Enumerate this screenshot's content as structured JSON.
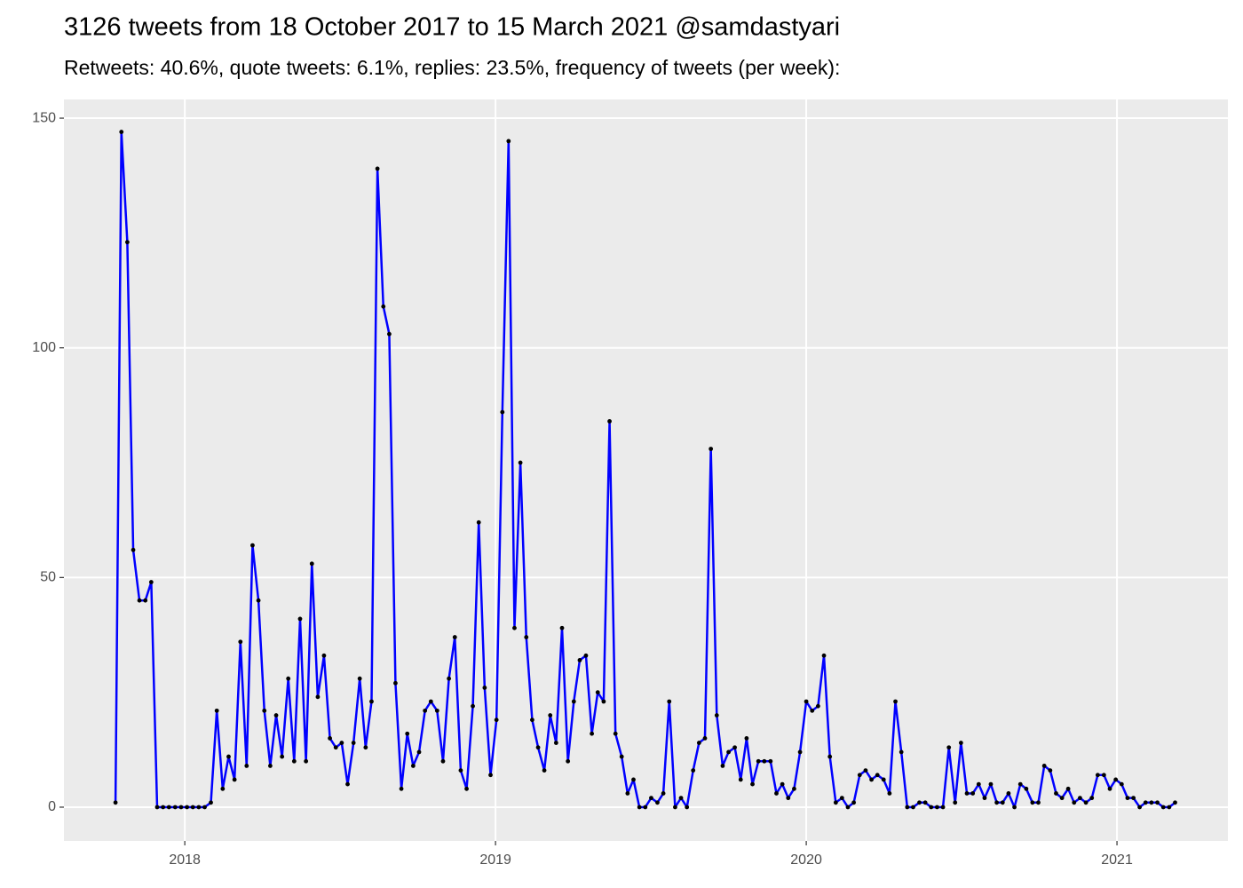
{
  "chart_data": {
    "type": "line",
    "title": "3126 tweets from 18 October 2017 to 15 March 2021 @samdastyari",
    "subtitle": "Retweets: 40.6%, quote tweets: 6.1%, replies: 23.5%, frequency of tweets (per week):",
    "x": [
      2017.777,
      2017.796,
      2017.815,
      2017.834,
      2017.854,
      2017.873,
      2017.892,
      2017.911,
      2017.93,
      2017.949,
      2017.969,
      2017.988,
      2018.007,
      2018.026,
      2018.045,
      2018.064,
      2018.084,
      2018.103,
      2018.122,
      2018.141,
      2018.16,
      2018.179,
      2018.199,
      2018.218,
      2018.237,
      2018.256,
      2018.275,
      2018.294,
      2018.313,
      2018.333,
      2018.352,
      2018.371,
      2018.39,
      2018.409,
      2018.428,
      2018.448,
      2018.467,
      2018.486,
      2018.505,
      2018.524,
      2018.543,
      2018.563,
      2018.582,
      2018.601,
      2018.62,
      2018.639,
      2018.658,
      2018.678,
      2018.697,
      2018.716,
      2018.735,
      2018.754,
      2018.773,
      2018.792,
      2018.812,
      2018.831,
      2018.85,
      2018.869,
      2018.888,
      2018.907,
      2018.927,
      2018.946,
      2018.965,
      2018.984,
      2019.003,
      2019.022,
      2019.042,
      2019.061,
      2019.08,
      2019.099,
      2019.118,
      2019.137,
      2019.157,
      2019.176,
      2019.195,
      2019.214,
      2019.233,
      2019.252,
      2019.271,
      2019.291,
      2019.31,
      2019.329,
      2019.348,
      2019.367,
      2019.386,
      2019.406,
      2019.425,
      2019.444,
      2019.463,
      2019.482,
      2019.501,
      2019.521,
      2019.54,
      2019.559,
      2019.578,
      2019.597,
      2019.616,
      2019.636,
      2019.655,
      2019.674,
      2019.693,
      2019.712,
      2019.731,
      2019.75,
      2019.77,
      2019.789,
      2019.808,
      2019.827,
      2019.846,
      2019.865,
      2019.885,
      2019.904,
      2019.923,
      2019.942,
      2019.961,
      2019.98,
      2020.0,
      2020.019,
      2020.038,
      2020.057,
      2020.076,
      2020.095,
      2020.115,
      2020.134,
      2020.153,
      2020.172,
      2020.191,
      2020.21,
      2020.229,
      2020.249,
      2020.268,
      2020.287,
      2020.306,
      2020.325,
      2020.344,
      2020.364,
      2020.383,
      2020.402,
      2020.421,
      2020.44,
      2020.459,
      2020.479,
      2020.498,
      2020.517,
      2020.536,
      2020.555,
      2020.574,
      2020.594,
      2020.613,
      2020.632,
      2020.651,
      2020.67,
      2020.689,
      2020.708,
      2020.728,
      2020.747,
      2020.766,
      2020.785,
      2020.804,
      2020.823,
      2020.843,
      2020.862,
      2020.881,
      2020.9,
      2020.919,
      2020.938,
      2020.958,
      2020.977,
      2020.996,
      2021.015,
      2021.034,
      2021.053,
      2021.073,
      2021.092,
      2021.111,
      2021.13,
      2021.149,
      2021.168,
      2021.187
    ],
    "values": [
      1,
      147,
      123,
      56,
      45,
      45,
      49,
      0,
      0,
      0,
      0,
      0,
      0,
      0,
      0,
      0,
      1,
      21,
      4,
      11,
      6,
      36,
      9,
      57,
      45,
      21,
      9,
      20,
      11,
      28,
      10,
      41,
      10,
      53,
      24,
      33,
      15,
      13,
      14,
      5,
      14,
      28,
      13,
      23,
      139,
      109,
      103,
      27,
      4,
      16,
      9,
      12,
      21,
      23,
      21,
      10,
      28,
      37,
      8,
      4,
      22,
      62,
      26,
      7,
      19,
      86,
      145,
      39,
      75,
      37,
      19,
      13,
      8,
      20,
      14,
      39,
      10,
      23,
      32,
      33,
      16,
      25,
      23,
      84,
      16,
      11,
      3,
      6,
      0,
      0,
      2,
      1,
      3,
      23,
      0,
      2,
      0,
      8,
      14,
      15,
      78,
      20,
      9,
      12,
      13,
      6,
      15,
      5,
      10,
      10,
      10,
      3,
      5,
      2,
      4,
      12,
      23,
      21,
      22,
      33,
      11,
      1,
      2,
      0,
      1,
      7,
      8,
      6,
      7,
      6,
      3,
      23,
      12,
      0,
      0,
      1,
      1,
      0,
      0,
      0,
      13,
      1,
      14,
      3,
      3,
      5,
      2,
      5,
      1,
      1,
      3,
      0,
      5,
      4,
      1,
      1,
      9,
      8,
      3,
      2,
      4,
      1,
      2,
      1,
      2,
      7,
      7,
      4,
      6,
      5,
      2,
      2,
      0,
      1,
      1,
      1,
      0,
      0,
      1
    ],
    "color": "#0000ff",
    "point_color": "#000000",
    "xlim": [
      2017.611,
      2021.357
    ],
    "xticks": [
      2018,
      2019,
      2020,
      2021
    ],
    "ylim": [
      -7.35,
      154.07
    ],
    "yticks": [
      0,
      50,
      100,
      150
    ],
    "grid": true
  }
}
